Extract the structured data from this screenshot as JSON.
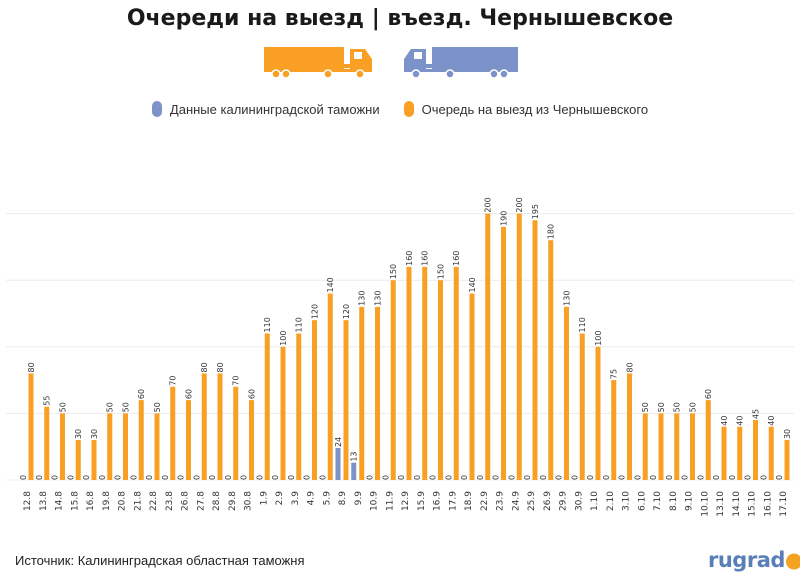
{
  "title": "Очереди на выезд | въезд. Чернышевское",
  "source": "Источник: Калининградская областная таможня",
  "logo": "rugrad",
  "colors": {
    "orange": "#f9a024",
    "blue": "#7b93c8"
  },
  "icons": {
    "exit_truck": "orange-truck-icon",
    "entry_truck": "blue-truck-icon"
  },
  "chart_data": {
    "type": "bar",
    "title": "Очереди на выезд | въезд. Чернышевское",
    "legend_position": "top-center",
    "grid": true,
    "ylim": [
      0,
      250
    ],
    "categories": [
      "12.8",
      "13.8",
      "14.8",
      "15.8",
      "16.8",
      "19.8",
      "20.8",
      "21.8",
      "22.8",
      "23.8",
      "26.8",
      "27.8",
      "28.8",
      "29.8",
      "30.8",
      "1.9",
      "2.9",
      "3.9",
      "4.9",
      "5.9",
      "8.9",
      "9.9",
      "10.9",
      "11.9",
      "12.9",
      "15.9",
      "16.9",
      "17.9",
      "18.9",
      "22.9",
      "23.9",
      "24.9",
      "25.9",
      "26.9",
      "29.9",
      "30.9",
      "1.10",
      "2.10",
      "3.10",
      "6.10",
      "7.10",
      "8.10",
      "9.10",
      "10.10",
      "13.10",
      "14.10",
      "15.10",
      "16.10",
      "17.10"
    ],
    "series": [
      {
        "name": "Данные калининградской таможни",
        "color": "#7b93c8",
        "values": [
          0,
          0,
          0,
          0,
          0,
          0,
          0,
          0,
          0,
          0,
          0,
          0,
          0,
          0,
          0,
          0,
          0,
          0,
          0,
          0,
          24,
          13,
          0,
          0,
          0,
          0,
          0,
          0,
          0,
          0,
          0,
          0,
          0,
          0,
          0,
          0,
          0,
          0,
          0,
          0,
          0,
          0,
          0,
          0,
          0,
          0,
          0,
          0,
          0
        ]
      },
      {
        "name": "Очередь на выезд из Чернышевского",
        "color": "#f9a024",
        "values": [
          80,
          55,
          50,
          30,
          30,
          50,
          50,
          60,
          50,
          70,
          60,
          80,
          80,
          70,
          60,
          110,
          100,
          110,
          120,
          140,
          120,
          130,
          130,
          150,
          160,
          160,
          150,
          160,
          140,
          200,
          190,
          200,
          195,
          180,
          130,
          110,
          100,
          75,
          80,
          50,
          50,
          50,
          50,
          60,
          40,
          40,
          45,
          40,
          30
        ]
      }
    ]
  }
}
